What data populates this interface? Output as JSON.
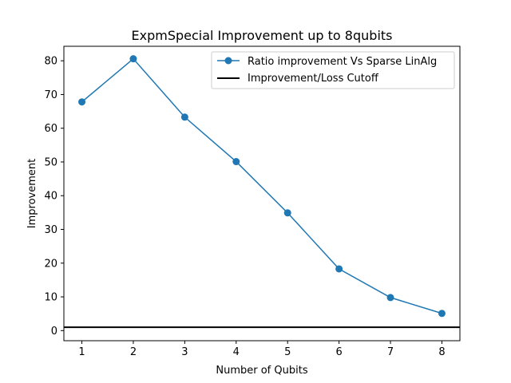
{
  "chart_data": {
    "type": "line",
    "title": "ExpmSpecial Improvement up to 8qubits",
    "xlabel": "Number of Qubits",
    "ylabel": "Improvement",
    "x": [
      1,
      2,
      3,
      4,
      5,
      6,
      7,
      8
    ],
    "xlim": [
      0.65,
      8.35
    ],
    "ylim": [
      -3,
      84.3
    ],
    "xticks": [
      1,
      2,
      3,
      4,
      5,
      6,
      7,
      8
    ],
    "yticks": [
      0,
      10,
      20,
      30,
      40,
      50,
      60,
      70,
      80
    ],
    "series": [
      {
        "name": "Ratio improvement Vs Sparse LinAlg",
        "values": [
          67.8,
          80.6,
          63.3,
          50.1,
          34.9,
          18.3,
          9.8,
          5.1
        ],
        "color": "#1f77b4",
        "marker": "circle"
      }
    ],
    "hlines": [
      {
        "name": "Improvement/Loss Cutoff",
        "y": 1,
        "color": "#000000"
      }
    ],
    "legend_position": "top-right",
    "grid": false
  }
}
